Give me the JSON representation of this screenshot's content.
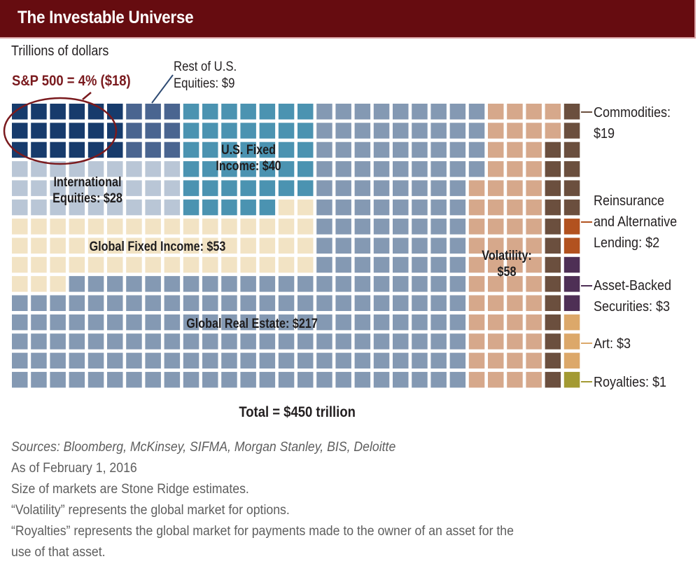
{
  "header": {
    "title": "The Investable Universe"
  },
  "subtitle": "Trillions of dollars",
  "chart_data": {
    "type": "waffle",
    "title": "The Investable Universe",
    "unit": "Trillions of dollars",
    "grid": {
      "rows": 15,
      "cols": 30,
      "value_per_cell": 1
    },
    "total_label": "Total = $450 trillion",
    "total": 450,
    "categories": [
      {
        "key": "sp500",
        "name": "S&P 500",
        "label": "S&P 500 = 4% ($18)",
        "value": 18,
        "color": "#173b6c"
      },
      {
        "key": "rest_us",
        "name": "Rest of U.S. Equities",
        "label_lines": [
          "Rest of U.S.",
          "Equities: $9"
        ],
        "value": 9,
        "color": "#4a6590"
      },
      {
        "key": "us_fi",
        "name": "U.S. Fixed Income",
        "label_lines": [
          "U.S. Fixed",
          "Income: $40"
        ],
        "value": 40,
        "color": "#4b93b1"
      },
      {
        "key": "intl_eq",
        "name": "International Equities",
        "label_lines": [
          "International",
          "Equities: $28"
        ],
        "value": 28,
        "color": "#b9c6d6"
      },
      {
        "key": "global_fi",
        "name": "Global Fixed Income",
        "label_lines": [
          "Global Fixed Income: $53"
        ],
        "value": 53,
        "color": "#f2e3c4"
      },
      {
        "key": "real_estate",
        "name": "Global Real Estate",
        "label_lines": [
          "Global Real Estate: $217"
        ],
        "value": 217,
        "color": "#8499b3"
      },
      {
        "key": "volatility",
        "name": "Volatility",
        "label_lines": [
          "Volatility:",
          "$58"
        ],
        "value": 58,
        "color": "#d6a88b"
      },
      {
        "key": "commodities",
        "name": "Commodities",
        "label_lines": [
          "Commodities:",
          "$19"
        ],
        "value": 19,
        "color": "#6b4f3e"
      },
      {
        "key": "reinsurance",
        "name": "Reinsurance and Alternative Lending",
        "label_lines": [
          "Reinsurance",
          "and Alternative",
          "Lending: $2"
        ],
        "value": 2,
        "color": "#b2521f"
      },
      {
        "key": "abs",
        "name": "Asset-Backed Securities",
        "label_lines": [
          "Asset-Backed",
          "Securities: $3"
        ],
        "value": 3,
        "color": "#4e2f55"
      },
      {
        "key": "art",
        "name": "Art",
        "label_lines": [
          "Art: $3"
        ],
        "value": 3,
        "color": "#dca86a"
      },
      {
        "key": "royalties",
        "name": "Royalties",
        "label_lines": [
          "Royalties: $1"
        ],
        "value": 1,
        "color": "#a39a33"
      }
    ],
    "annotation_color": "#7a1a1e",
    "leader_color": "#2e4a72"
  },
  "notes": [
    "Sources: Bloomberg, McKinsey, SIFMA, Morgan Stanley, BIS, Deloitte",
    "As of February 1, 2016",
    "Size of markets are Stone Ridge estimates.",
    "“Volatility” represents the global market for options.",
    "“Royalties” represents the global market for payments made to the owner of an asset for the",
    "use of that asset."
  ]
}
